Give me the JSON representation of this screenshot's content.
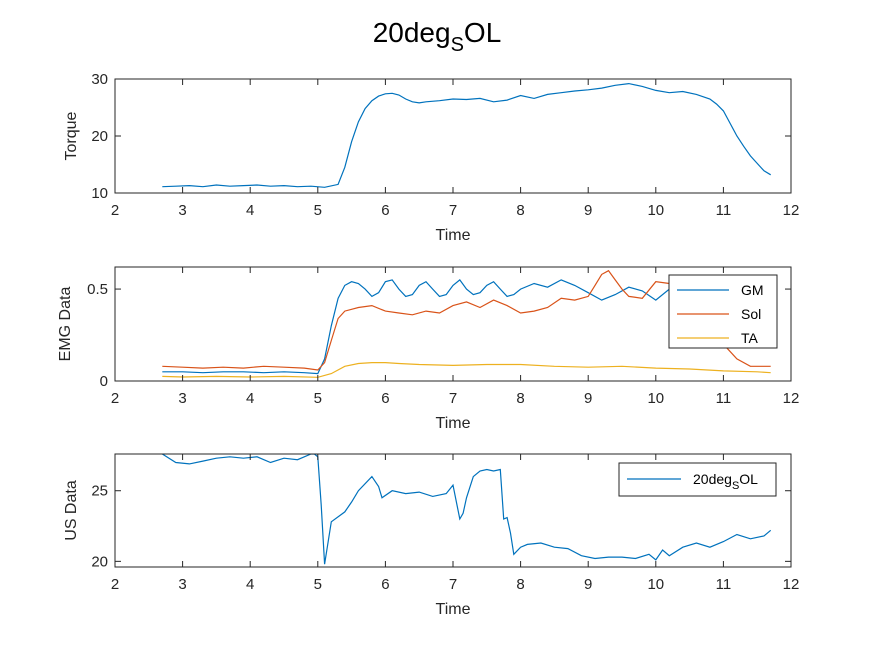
{
  "figure": {
    "title_main": "20deg",
    "title_sub": "S",
    "title_tail": "OL"
  },
  "chart_data": [
    {
      "type": "line",
      "xlabel": "Time",
      "ylabel": "Torque",
      "xlim": [
        2,
        12
      ],
      "ylim": [
        10,
        30
      ],
      "xticks": [
        2,
        3,
        4,
        5,
        6,
        7,
        8,
        9,
        10,
        11,
        12
      ],
      "yticks": [
        10,
        20,
        30
      ],
      "legend": null,
      "series": [
        {
          "color": "#0072BD",
          "x": [
            2.7,
            2.9,
            3.1,
            3.3,
            3.5,
            3.7,
            3.9,
            4.1,
            4.3,
            4.5,
            4.7,
            4.9,
            5.1,
            5.3,
            5.4,
            5.5,
            5.6,
            5.7,
            5.8,
            5.9,
            6.0,
            6.1,
            6.2,
            6.3,
            6.4,
            6.5,
            6.6,
            6.8,
            7.0,
            7.2,
            7.4,
            7.6,
            7.8,
            8.0,
            8.2,
            8.4,
            8.6,
            8.8,
            9.0,
            9.2,
            9.4,
            9.6,
            9.8,
            10.0,
            10.2,
            10.4,
            10.6,
            10.8,
            10.9,
            11.0,
            11.1,
            11.2,
            11.3,
            11.4,
            11.5,
            11.6,
            11.7
          ],
          "y": [
            11.1,
            11.2,
            11.3,
            11.1,
            11.4,
            11.2,
            11.3,
            11.4,
            11.2,
            11.3,
            11.1,
            11.2,
            11.0,
            11.5,
            14.5,
            19.0,
            22.5,
            24.8,
            26.2,
            27.0,
            27.4,
            27.5,
            27.2,
            26.5,
            26.0,
            25.8,
            26.0,
            26.2,
            26.5,
            26.4,
            26.6,
            26.0,
            26.3,
            27.1,
            26.6,
            27.3,
            27.6,
            27.9,
            28.1,
            28.4,
            28.9,
            29.2,
            28.7,
            28.0,
            27.6,
            27.8,
            27.3,
            26.5,
            25.6,
            24.4,
            22.2,
            20.0,
            18.2,
            16.5,
            15.2,
            13.9,
            13.2
          ]
        }
      ]
    },
    {
      "type": "line",
      "xlabel": "Time",
      "ylabel": "EMG Data",
      "xlim": [
        2,
        12
      ],
      "ylim": [
        0,
        0.62
      ],
      "xticks": [
        2,
        3,
        4,
        5,
        6,
        7,
        8,
        9,
        10,
        11,
        12
      ],
      "yticks": [
        0,
        0.5
      ],
      "ytick_labels": [
        "0",
        "0.5"
      ],
      "legend": "top-right",
      "series": [
        {
          "name": "GM",
          "color": "#0072BD",
          "x": [
            2.7,
            3.0,
            3.3,
            3.6,
            3.9,
            4.2,
            4.5,
            4.8,
            5.0,
            5.1,
            5.2,
            5.3,
            5.4,
            5.5,
            5.6,
            5.7,
            5.8,
            5.9,
            6.0,
            6.1,
            6.2,
            6.3,
            6.4,
            6.5,
            6.6,
            6.7,
            6.8,
            6.9,
            7.0,
            7.1,
            7.2,
            7.3,
            7.4,
            7.5,
            7.6,
            7.7,
            7.8,
            7.9,
            8.0,
            8.2,
            8.4,
            8.6,
            8.8,
            9.0,
            9.2,
            9.4,
            9.6,
            9.8,
            10.0,
            10.2,
            10.4,
            10.6,
            10.8,
            11.0
          ],
          "y": [
            0.05,
            0.05,
            0.045,
            0.05,
            0.05,
            0.045,
            0.05,
            0.045,
            0.04,
            0.12,
            0.3,
            0.45,
            0.52,
            0.54,
            0.53,
            0.5,
            0.46,
            0.48,
            0.54,
            0.55,
            0.5,
            0.46,
            0.47,
            0.52,
            0.54,
            0.5,
            0.46,
            0.47,
            0.52,
            0.55,
            0.5,
            0.47,
            0.48,
            0.52,
            0.54,
            0.5,
            0.46,
            0.47,
            0.5,
            0.53,
            0.51,
            0.55,
            0.52,
            0.48,
            0.44,
            0.47,
            0.51,
            0.49,
            0.44,
            0.5,
            0.54,
            0.51,
            0.49,
            0.49
          ]
        },
        {
          "name": "Sol",
          "color": "#D95319",
          "x": [
            2.7,
            3.0,
            3.3,
            3.6,
            3.9,
            4.2,
            4.5,
            4.8,
            5.0,
            5.1,
            5.2,
            5.3,
            5.4,
            5.5,
            5.6,
            5.8,
            6.0,
            6.2,
            6.4,
            6.6,
            6.8,
            7.0,
            7.2,
            7.4,
            7.6,
            7.8,
            8.0,
            8.2,
            8.4,
            8.6,
            8.8,
            9.0,
            9.1,
            9.2,
            9.3,
            9.4,
            9.5,
            9.6,
            9.8,
            10.0,
            10.2,
            10.4,
            10.6,
            10.8,
            11.0,
            11.2,
            11.4,
            11.7
          ],
          "y": [
            0.08,
            0.075,
            0.07,
            0.075,
            0.07,
            0.08,
            0.075,
            0.07,
            0.06,
            0.1,
            0.22,
            0.34,
            0.38,
            0.39,
            0.4,
            0.41,
            0.38,
            0.37,
            0.36,
            0.38,
            0.37,
            0.41,
            0.43,
            0.4,
            0.44,
            0.41,
            0.37,
            0.38,
            0.4,
            0.45,
            0.44,
            0.46,
            0.52,
            0.58,
            0.6,
            0.55,
            0.5,
            0.46,
            0.45,
            0.54,
            0.53,
            0.48,
            0.42,
            0.3,
            0.2,
            0.12,
            0.08,
            0.08
          ]
        },
        {
          "name": "TA",
          "color": "#EDB120",
          "x": [
            2.7,
            3.0,
            3.5,
            4.0,
            4.5,
            5.0,
            5.2,
            5.4,
            5.6,
            5.8,
            6.0,
            6.2,
            6.5,
            7.0,
            7.5,
            8.0,
            8.5,
            9.0,
            9.5,
            10.0,
            10.5,
            11.0,
            11.5,
            11.7
          ],
          "y": [
            0.025,
            0.022,
            0.025,
            0.022,
            0.025,
            0.02,
            0.04,
            0.08,
            0.095,
            0.1,
            0.1,
            0.095,
            0.09,
            0.085,
            0.09,
            0.09,
            0.08,
            0.075,
            0.08,
            0.07,
            0.065,
            0.055,
            0.05,
            0.045
          ]
        }
      ]
    },
    {
      "type": "line",
      "xlabel": "Time",
      "ylabel": "US Data",
      "xlim": [
        2,
        12
      ],
      "ylim": [
        19.6,
        27.6
      ],
      "xticks": [
        2,
        3,
        4,
        5,
        6,
        7,
        8,
        9,
        10,
        11,
        12
      ],
      "yticks": [
        20,
        25
      ],
      "legend": "top-right",
      "legend_entry": {
        "main": "20deg",
        "sub": "S",
        "tail": "OL"
      },
      "series": [
        {
          "color": "#0072BD",
          "x": [
            2.7,
            2.9,
            3.1,
            3.3,
            3.5,
            3.7,
            3.9,
            4.1,
            4.3,
            4.5,
            4.7,
            4.9,
            4.95,
            5.0,
            5.05,
            5.1,
            5.2,
            5.4,
            5.5,
            5.6,
            5.8,
            5.9,
            5.95,
            6.1,
            6.3,
            6.5,
            6.7,
            6.9,
            7.0,
            7.1,
            7.15,
            7.2,
            7.3,
            7.4,
            7.5,
            7.6,
            7.7,
            7.75,
            7.8,
            7.85,
            7.9,
            8.0,
            8.1,
            8.3,
            8.5,
            8.7,
            8.9,
            9.1,
            9.3,
            9.5,
            9.7,
            9.9,
            10.0,
            10.1,
            10.2,
            10.4,
            10.6,
            10.8,
            11.0,
            11.2,
            11.4,
            11.6,
            11.7
          ],
          "y": [
            27.6,
            27.0,
            26.9,
            27.1,
            27.3,
            27.4,
            27.3,
            27.4,
            27.0,
            27.3,
            27.2,
            27.6,
            27.6,
            27.4,
            24.0,
            19.8,
            22.8,
            23.5,
            24.2,
            25.0,
            26.0,
            25.3,
            24.5,
            25.0,
            24.8,
            24.9,
            24.6,
            24.8,
            25.4,
            23.0,
            23.4,
            24.5,
            26.0,
            26.4,
            26.5,
            26.4,
            26.5,
            23.0,
            23.1,
            22.0,
            20.5,
            21.0,
            21.2,
            21.3,
            21.0,
            20.9,
            20.4,
            20.2,
            20.3,
            20.3,
            20.2,
            20.5,
            20.1,
            20.8,
            20.4,
            21.0,
            21.3,
            21.0,
            21.4,
            21.9,
            21.6,
            21.8,
            22.2
          ]
        }
      ]
    }
  ]
}
